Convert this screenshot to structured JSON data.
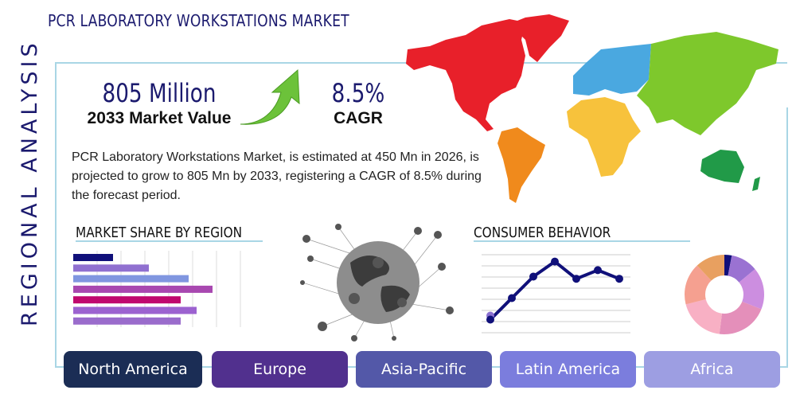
{
  "header": {
    "title": "PCR LABORATORY WORKSTATIONS MARKET",
    "side_label": "REGIONAL ANALYSIS"
  },
  "stats": {
    "market_value": "805 Million",
    "market_value_label": "2033 Market Value",
    "cagr": "8.5%",
    "cagr_label": "CAGR"
  },
  "description": "PCR Laboratory Workstations Market, is estimated at 450 Mn in 2026, is projected to grow to 805 Mn by 2033, registering a CAGR of 8.5% during the forecast period.",
  "sections": {
    "market_share": "MARKET SHARE BY REGION",
    "consumer": "CONSUMER BEHAVIOR"
  },
  "chart_data": [
    {
      "type": "bar",
      "orientation": "horizontal",
      "values": [
        20,
        38,
        58,
        70,
        54,
        62,
        54
      ],
      "colors": [
        "#10107a",
        "#9070d0",
        "#8096e0",
        "#a848b0",
        "#c0086e",
        "#9c62d0",
        "#9a6ccc"
      ],
      "grid": true
    },
    {
      "type": "line",
      "values": [
        1,
        3,
        5,
        6.4,
        4.8,
        5.6,
        4.8
      ],
      "color": "#10107a",
      "grid": true
    },
    {
      "type": "pie",
      "donut": true,
      "values": [
        3,
        11,
        17,
        21,
        19,
        17,
        12
      ],
      "colors": [
        "#10107a",
        "#9a72d2",
        "#cc8ee0",
        "#e48fba",
        "#f8b0c4",
        "#f5a090",
        "#e8a060"
      ]
    }
  ],
  "map_colors": {
    "north_america": "#e8202a",
    "south_america": "#f08a1c",
    "europe": "#4aa8e0",
    "africa": "#f7c23c",
    "asia": "#7ec82c",
    "oceania": "#219a48"
  },
  "regions": [
    {
      "label": "North America",
      "color": "#1b2d55"
    },
    {
      "label": "Europe",
      "color": "#51308e"
    },
    {
      "label": "Asia-Pacific",
      "color": "#5358a8"
    },
    {
      "label": "Latin America",
      "color": "#7b7ddd"
    },
    {
      "label": "Africa",
      "color": "#9d9ee2"
    }
  ]
}
